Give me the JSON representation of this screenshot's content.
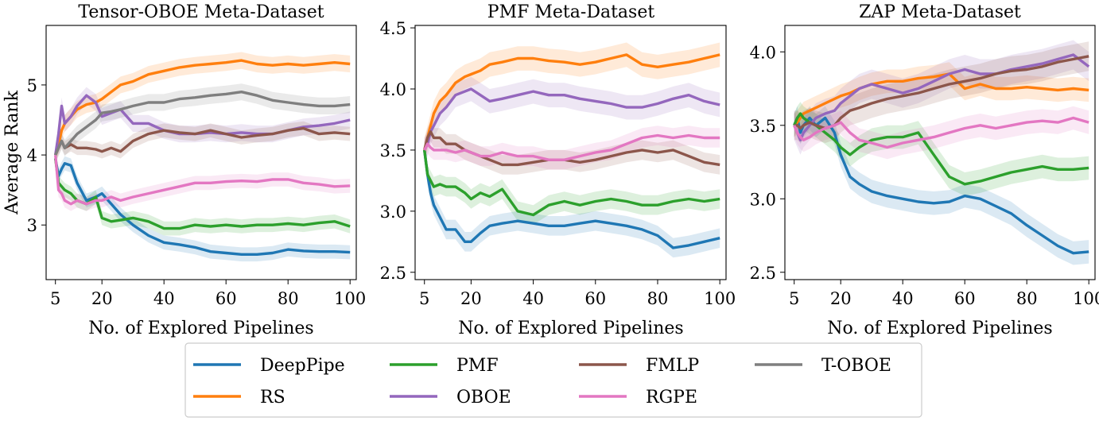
{
  "figure": {
    "ylabel_shared": "Average Rank"
  },
  "series_styles": [
    {
      "name": "DeepPipe",
      "color": "#1f77b4"
    },
    {
      "name": "RS",
      "color": "#ff7f0e"
    },
    {
      "name": "PMF",
      "color": "#2ca02c"
    },
    {
      "name": "OBOE",
      "color": "#9467bd"
    },
    {
      "name": "FMLP",
      "color": "#8c564b"
    },
    {
      "name": "RGPE",
      "color": "#e377c2"
    },
    {
      "name": "T-OBOE",
      "color": "#7f7f7f"
    }
  ],
  "legend": {
    "placement": "bottom-center",
    "items": [
      "DeepPipe",
      "RS",
      "PMF",
      "OBOE",
      "FMLP",
      "RGPE",
      "T-OBOE"
    ]
  },
  "chart_data": [
    {
      "type": "line",
      "title": "Tensor-OBOE Meta-Dataset",
      "xlabel": "No. of Explored Pipelines",
      "ylabel": "Average Rank",
      "xlim": [
        2,
        102
      ],
      "ylim": [
        2.22,
        5.85
      ],
      "xticks": [
        5,
        20,
        40,
        60,
        80,
        100
      ],
      "yticks": [
        3,
        4,
        5
      ],
      "grid": false,
      "shaded_band": true,
      "x": [
        5,
        6,
        7,
        8,
        10,
        12,
        15,
        18,
        20,
        23,
        26,
        30,
        35,
        40,
        45,
        50,
        55,
        60,
        65,
        70,
        75,
        80,
        85,
        90,
        95,
        100
      ],
      "series": [
        {
          "name": "DeepPipe",
          "values": [
            3.95,
            3.7,
            3.8,
            3.88,
            3.85,
            3.6,
            3.35,
            3.4,
            3.45,
            3.3,
            3.15,
            3.0,
            2.85,
            2.75,
            2.72,
            2.68,
            2.62,
            2.6,
            2.58,
            2.58,
            2.6,
            2.65,
            2.63,
            2.62,
            2.62,
            2.61
          ],
          "band": 0.1
        },
        {
          "name": "RS",
          "values": [
            4.0,
            4.15,
            4.35,
            4.45,
            4.55,
            4.65,
            4.72,
            4.75,
            4.8,
            4.9,
            5.0,
            5.05,
            5.15,
            5.2,
            5.25,
            5.28,
            5.3,
            5.32,
            5.35,
            5.3,
            5.28,
            5.3,
            5.28,
            5.3,
            5.32,
            5.3
          ],
          "band": 0.12
        },
        {
          "name": "PMF",
          "values": [
            3.95,
            3.6,
            3.55,
            3.5,
            3.45,
            3.35,
            3.3,
            3.4,
            3.1,
            3.05,
            3.07,
            3.1,
            3.05,
            2.95,
            2.95,
            3.0,
            2.98,
            3.0,
            2.98,
            3.0,
            3.0,
            3.02,
            3.0,
            3.03,
            3.05,
            2.98
          ],
          "band": 0.1
        },
        {
          "name": "OBOE",
          "values": [
            4.0,
            4.3,
            4.7,
            4.45,
            4.55,
            4.7,
            4.85,
            4.75,
            4.55,
            4.6,
            4.65,
            4.45,
            4.45,
            4.35,
            4.3,
            4.3,
            4.32,
            4.3,
            4.32,
            4.3,
            4.3,
            4.35,
            4.4,
            4.42,
            4.45,
            4.5
          ],
          "band": 0.12
        },
        {
          "name": "FMLP",
          "values": [
            4.0,
            4.1,
            4.2,
            4.1,
            4.15,
            4.1,
            4.1,
            4.08,
            4.05,
            4.1,
            4.05,
            4.2,
            4.3,
            4.35,
            4.32,
            4.3,
            4.35,
            4.3,
            4.25,
            4.28,
            4.3,
            4.35,
            4.38,
            4.3,
            4.32,
            4.3
          ],
          "band": 0.1
        },
        {
          "name": "RGPE",
          "values": [
            4.0,
            3.5,
            3.45,
            3.35,
            3.3,
            3.35,
            3.3,
            3.35,
            3.35,
            3.4,
            3.35,
            3.4,
            3.45,
            3.5,
            3.55,
            3.6,
            3.6,
            3.62,
            3.63,
            3.62,
            3.65,
            3.65,
            3.6,
            3.58,
            3.55,
            3.56
          ],
          "band": 0.1
        },
        {
          "name": "T-OBOE",
          "values": [
            4.0,
            4.1,
            4.2,
            4.1,
            4.2,
            4.3,
            4.4,
            4.5,
            4.6,
            4.62,
            4.65,
            4.7,
            4.75,
            4.75,
            4.8,
            4.82,
            4.85,
            4.87,
            4.9,
            4.85,
            4.78,
            4.75,
            4.72,
            4.7,
            4.7,
            4.72
          ],
          "band": 0.12
        }
      ]
    },
    {
      "type": "line",
      "title": "PMF Meta-Dataset",
      "xlabel": "No. of Explored Pipelines",
      "xlim": [
        2,
        102
      ],
      "ylim": [
        2.44,
        4.52
      ],
      "xticks": [
        5,
        20,
        40,
        60,
        80,
        100
      ],
      "yticks": [
        2.5,
        3.0,
        3.5,
        4.0,
        4.5
      ],
      "grid": false,
      "shaded_band": true,
      "x": [
        5,
        6,
        7,
        8,
        10,
        12,
        15,
        18,
        20,
        23,
        26,
        30,
        35,
        40,
        45,
        50,
        55,
        60,
        65,
        70,
        75,
        80,
        85,
        90,
        95,
        100
      ],
      "series": [
        {
          "name": "DeepPipe",
          "values": [
            3.5,
            3.3,
            3.15,
            3.05,
            2.95,
            2.85,
            2.85,
            2.75,
            2.75,
            2.82,
            2.88,
            2.9,
            2.92,
            2.9,
            2.88,
            2.88,
            2.9,
            2.92,
            2.9,
            2.88,
            2.85,
            2.8,
            2.7,
            2.72,
            2.75,
            2.78
          ],
          "band": 0.08
        },
        {
          "name": "RS",
          "values": [
            3.5,
            3.6,
            3.7,
            3.8,
            3.9,
            3.95,
            4.05,
            4.1,
            4.12,
            4.15,
            4.2,
            4.22,
            4.25,
            4.25,
            4.23,
            4.22,
            4.2,
            4.22,
            4.25,
            4.28,
            4.2,
            4.18,
            4.2,
            4.22,
            4.25,
            4.28
          ],
          "band": 0.1
        },
        {
          "name": "PMF",
          "values": [
            3.5,
            3.3,
            3.25,
            3.2,
            3.22,
            3.2,
            3.2,
            3.15,
            3.1,
            3.15,
            3.12,
            3.18,
            3.0,
            2.97,
            3.05,
            3.08,
            3.05,
            3.08,
            3.1,
            3.08,
            3.05,
            3.05,
            3.08,
            3.1,
            3.08,
            3.1
          ],
          "band": 0.08
        },
        {
          "name": "OBOE",
          "values": [
            3.5,
            3.55,
            3.65,
            3.7,
            3.8,
            3.85,
            3.95,
            3.98,
            4.0,
            3.95,
            3.9,
            3.92,
            3.95,
            3.98,
            3.95,
            3.95,
            3.92,
            3.9,
            3.88,
            3.85,
            3.85,
            3.88,
            3.92,
            3.95,
            3.9,
            3.87
          ],
          "band": 0.1
        },
        {
          "name": "FMLP",
          "values": [
            3.5,
            3.6,
            3.65,
            3.6,
            3.6,
            3.55,
            3.55,
            3.5,
            3.48,
            3.45,
            3.42,
            3.38,
            3.38,
            3.4,
            3.42,
            3.42,
            3.4,
            3.42,
            3.45,
            3.48,
            3.5,
            3.48,
            3.5,
            3.45,
            3.4,
            3.38
          ],
          "band": 0.08
        },
        {
          "name": "RGPE",
          "values": [
            3.5,
            3.55,
            3.52,
            3.5,
            3.5,
            3.5,
            3.48,
            3.5,
            3.48,
            3.45,
            3.45,
            3.48,
            3.45,
            3.45,
            3.42,
            3.42,
            3.45,
            3.48,
            3.5,
            3.55,
            3.6,
            3.62,
            3.6,
            3.62,
            3.6,
            3.6
          ],
          "band": 0.08
        }
      ]
    },
    {
      "type": "line",
      "title": "ZAP Meta-Dataset",
      "xlabel": "No. of Explored Pipelines",
      "xlim": [
        2,
        102
      ],
      "ylim": [
        2.45,
        4.18
      ],
      "xticks": [
        5,
        20,
        40,
        60,
        80,
        100
      ],
      "yticks": [
        2.5,
        3.0,
        3.5,
        4.0
      ],
      "grid": false,
      "shaded_band": true,
      "x": [
        5,
        6,
        7,
        8,
        10,
        12,
        15,
        18,
        20,
        23,
        26,
        30,
        35,
        40,
        45,
        50,
        55,
        60,
        65,
        70,
        75,
        80,
        85,
        90,
        95,
        100
      ],
      "series": [
        {
          "name": "DeepPipe",
          "values": [
            3.5,
            3.55,
            3.45,
            3.5,
            3.55,
            3.5,
            3.55,
            3.45,
            3.3,
            3.15,
            3.1,
            3.05,
            3.02,
            3.0,
            2.98,
            2.97,
            2.98,
            3.02,
            3.0,
            2.95,
            2.9,
            2.82,
            2.75,
            2.68,
            2.63,
            2.64
          ],
          "band": 0.08
        },
        {
          "name": "RS",
          "values": [
            3.5,
            3.52,
            3.55,
            3.58,
            3.6,
            3.62,
            3.65,
            3.68,
            3.7,
            3.72,
            3.75,
            3.78,
            3.8,
            3.8,
            3.82,
            3.83,
            3.85,
            3.75,
            3.78,
            3.75,
            3.75,
            3.76,
            3.75,
            3.74,
            3.75,
            3.74
          ],
          "band": 0.08
        },
        {
          "name": "PMF",
          "values": [
            3.5,
            3.55,
            3.58,
            3.55,
            3.52,
            3.5,
            3.45,
            3.4,
            3.35,
            3.3,
            3.35,
            3.4,
            3.42,
            3.42,
            3.45,
            3.3,
            3.15,
            3.1,
            3.12,
            3.15,
            3.18,
            3.2,
            3.22,
            3.2,
            3.2,
            3.21
          ],
          "band": 0.08
        },
        {
          "name": "OBOE",
          "values": [
            3.5,
            3.45,
            3.4,
            3.45,
            3.5,
            3.55,
            3.58,
            3.6,
            3.65,
            3.7,
            3.75,
            3.78,
            3.75,
            3.72,
            3.75,
            3.8,
            3.85,
            3.88,
            3.85,
            3.85,
            3.88,
            3.9,
            3.92,
            3.95,
            3.98,
            3.9
          ],
          "band": 0.1
        },
        {
          "name": "FMLP",
          "values": [
            3.5,
            3.5,
            3.48,
            3.5,
            3.52,
            3.5,
            3.48,
            3.5,
            3.55,
            3.6,
            3.62,
            3.65,
            3.68,
            3.7,
            3.72,
            3.75,
            3.78,
            3.8,
            3.82,
            3.85,
            3.87,
            3.88,
            3.9,
            3.93,
            3.95,
            3.97
          ],
          "band": 0.1
        },
        {
          "name": "RGPE",
          "values": [
            3.5,
            3.45,
            3.42,
            3.4,
            3.42,
            3.45,
            3.48,
            3.5,
            3.52,
            3.45,
            3.4,
            3.38,
            3.35,
            3.38,
            3.4,
            3.42,
            3.45,
            3.48,
            3.5,
            3.48,
            3.5,
            3.52,
            3.53,
            3.52,
            3.55,
            3.52
          ],
          "band": 0.08
        }
      ]
    }
  ]
}
